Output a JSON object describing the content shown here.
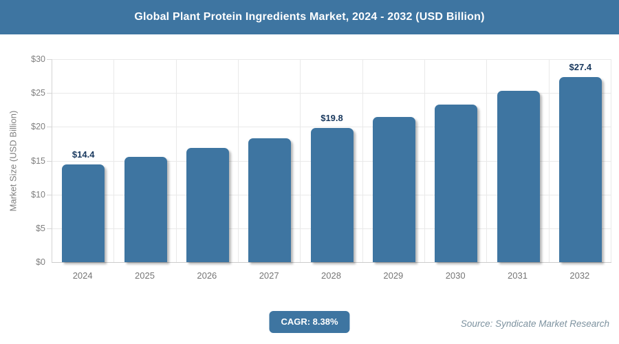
{
  "title": "Global Plant Protein Ingredients Market, 2024 - 2032 (USD Billion)",
  "colors": {
    "accent": "#3e75a1",
    "bar": "#3e75a1",
    "data_label": "#17375d",
    "axis_text": "#7f7f7f",
    "gridline": "#e9e9e9",
    "source_text": "#7d929f"
  },
  "chart_data": {
    "type": "bar",
    "title": "Global Plant Protein Ingredients Market, 2024 - 2032 (USD Billion)",
    "categories": [
      "2024",
      "2025",
      "2026",
      "2027",
      "2028",
      "2029",
      "2030",
      "2031",
      "2032"
    ],
    "values": [
      14.4,
      15.6,
      16.9,
      18.3,
      19.8,
      21.5,
      23.3,
      25.3,
      27.4
    ],
    "data_labels": [
      "$14.4",
      "",
      "",
      "",
      "$19.8",
      "",
      "",
      "",
      "$27.4"
    ],
    "xlabel": "",
    "ylabel": "Market Size (USD Billion)",
    "ylim": [
      0,
      30
    ],
    "ytick_values": [
      0,
      5,
      10,
      15,
      20,
      25,
      30
    ],
    "ytick_labels": [
      "$0",
      "$5",
      "$10",
      "$15",
      "$20",
      "$25",
      "$30"
    ],
    "grid": true,
    "legend": false
  },
  "footer": {
    "cagr_label": "CAGR: 8.38%",
    "source": "Source: Syndicate Market Research"
  }
}
